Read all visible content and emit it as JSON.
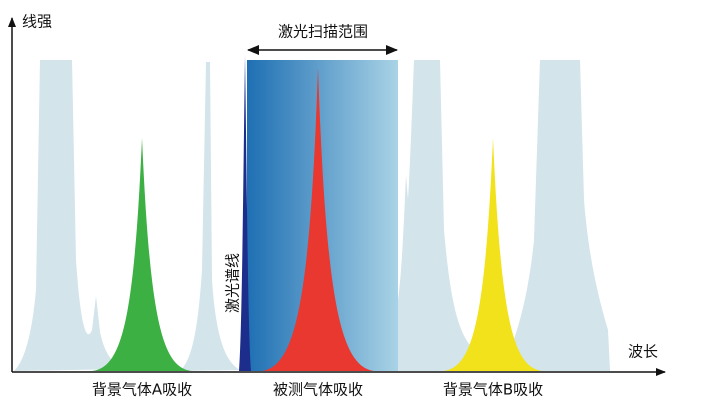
{
  "axes": {
    "y_label": "线强",
    "x_label": "波长"
  },
  "scan_range": "激光扫描范围",
  "laser_line": "激光谱线",
  "regions": [
    "背景气体A吸收",
    "被测气体吸收",
    "背景气体B吸收"
  ]
}
